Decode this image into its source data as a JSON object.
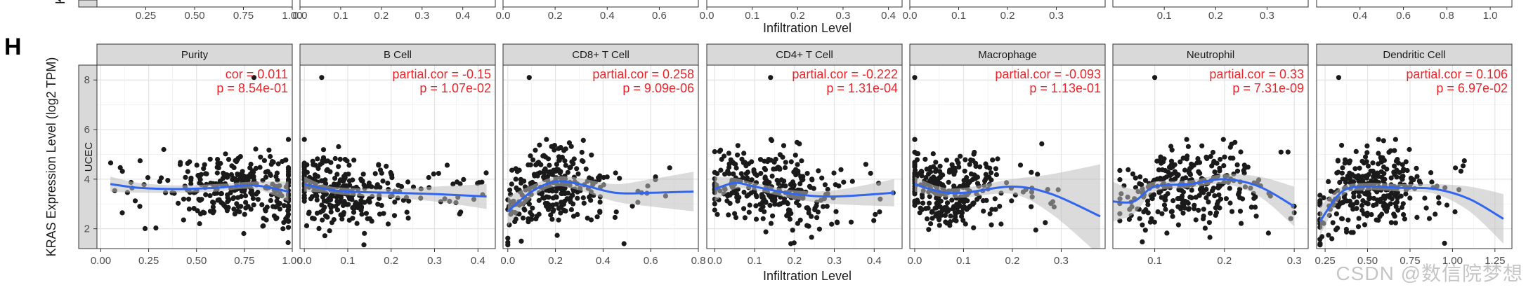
{
  "figure": {
    "panel_label": "H",
    "watermark": "CSDN @数信院梦想",
    "colors": {
      "stat_text": "#e8262b",
      "fit_line": "#3366ee",
      "band": "#bdbdbd",
      "strip": "#d9d9d9",
      "points": "#1a1a1a"
    }
  },
  "top_strip": {
    "partial_y_label": "KF",
    "x_title": "Infiltration Level",
    "panels": [
      {
        "ticks": [
          "0.25",
          "0.50",
          "0.75",
          "1.00"
        ],
        "tick_values": [
          0.25,
          0.5,
          0.75,
          1.0
        ],
        "xlim": [
          0.0,
          1.0
        ]
      },
      {
        "ticks": [
          "0.0",
          "0.1",
          "0.2",
          "0.3",
          "0.4"
        ],
        "tick_values": [
          0.0,
          0.1,
          0.2,
          0.3,
          0.4
        ],
        "xlim": [
          0.0,
          0.48
        ]
      },
      {
        "ticks": [
          "0.0",
          "0.2",
          "0.4",
          "0.6"
        ],
        "tick_values": [
          0.0,
          0.2,
          0.4,
          0.6
        ],
        "xlim": [
          0.0,
          0.75
        ]
      },
      {
        "ticks": [
          "0.0",
          "0.1",
          "0.2",
          "0.3",
          "0.4"
        ],
        "tick_values": [
          0.0,
          0.1,
          0.2,
          0.3,
          0.4
        ],
        "xlim": [
          0.0,
          0.43
        ]
      },
      {
        "ticks": [
          "0.0",
          "0.1",
          "0.2",
          "0.3"
        ],
        "tick_values": [
          0.0,
          0.1,
          0.2,
          0.3
        ],
        "xlim": [
          0.0,
          0.4
        ]
      },
      {
        "ticks": [
          "0.1",
          "0.2",
          "0.3"
        ],
        "tick_values": [
          0.1,
          0.2,
          0.3
        ],
        "xlim": [
          0.0,
          0.38
        ]
      },
      {
        "ticks": [
          "0.4",
          "0.6",
          "0.8",
          "1.0"
        ],
        "tick_values": [
          0.4,
          0.6,
          0.8,
          1.0
        ],
        "xlim": [
          0.2,
          1.1
        ]
      }
    ]
  },
  "chart_data": {
    "type": "scatter",
    "title": "",
    "row_label": "UCEC",
    "ylabel": "KRAS Expression Level (log2 TPM)",
    "xlabel": "Infiltration Level",
    "ylim": [
      1.2,
      8.6
    ],
    "yticks": [
      2,
      4,
      6,
      8
    ],
    "grid": true,
    "panels": [
      {
        "name": "Purity",
        "stat_label": "cor",
        "stat_sep": " = ",
        "stat_value": "0.011",
        "p_text": "p = 8.54e-01",
        "xlim": [
          -0.02,
          1.0
        ],
        "xticks": [
          0.0,
          0.25,
          0.5,
          0.75,
          1.0
        ],
        "xtick_labels": [
          "0.00",
          "0.25",
          "0.50",
          "0.75",
          "1.00"
        ],
        "fit_x": [
          0.05,
          0.2,
          0.4,
          0.6,
          0.8,
          0.98
        ],
        "fit_y": [
          3.8,
          3.65,
          3.6,
          3.65,
          3.75,
          3.5
        ],
        "band_upper": [
          4.1,
          3.85,
          3.75,
          3.8,
          3.9,
          3.9
        ],
        "band_lower": [
          3.5,
          3.45,
          3.45,
          3.5,
          3.6,
          3.1
        ],
        "outliers": [
          [
            0.8,
            8.1
          ]
        ],
        "cluster": {
          "xmin": 0.05,
          "xmax": 0.98,
          "xmean": 0.72,
          "xsd": 0.18,
          "n": 300
        }
      },
      {
        "name": "B Cell",
        "stat_label": "partial.cor",
        "stat_sep": " = ",
        "stat_value": "-0.15",
        "p_text": "p = 1.07e-02",
        "xlim": [
          -0.01,
          0.44
        ],
        "xticks": [
          0.0,
          0.1,
          0.2,
          0.3,
          0.4
        ],
        "xtick_labels": [
          "0.0",
          "0.1",
          "0.2",
          "0.3",
          "0.4"
        ],
        "fit_x": [
          0.0,
          0.05,
          0.1,
          0.2,
          0.3,
          0.42
        ],
        "fit_y": [
          3.8,
          3.6,
          3.5,
          3.45,
          3.4,
          3.3
        ],
        "band_upper": [
          4.1,
          3.75,
          3.65,
          3.6,
          3.7,
          3.8
        ],
        "band_lower": [
          3.5,
          3.45,
          3.35,
          3.25,
          3.1,
          2.8
        ],
        "outliers": [
          [
            0.04,
            8.1
          ]
        ],
        "cluster": {
          "xmin": 0.0,
          "xmax": 0.42,
          "xmean": 0.08,
          "xsd": 0.07,
          "n": 300
        }
      },
      {
        "name": "CD8+ T Cell",
        "stat_label": "partial.cor",
        "stat_sep": " = ",
        "stat_value": "0.258",
        "p_text": "p = 9.09e-06",
        "xlim": [
          -0.02,
          0.8
        ],
        "xticks": [
          0.0,
          0.2,
          0.4,
          0.6,
          0.8
        ],
        "xtick_labels": [
          "0.0",
          "0.2",
          "0.4",
          "0.6",
          "0.8"
        ],
        "fit_x": [
          0.0,
          0.1,
          0.2,
          0.3,
          0.45,
          0.6,
          0.78
        ],
        "fit_y": [
          2.7,
          3.5,
          3.9,
          3.8,
          3.45,
          3.45,
          3.5
        ],
        "band_upper": [
          3.3,
          3.75,
          4.1,
          4.05,
          3.8,
          4.0,
          4.3
        ],
        "band_lower": [
          2.1,
          3.25,
          3.7,
          3.55,
          3.1,
          2.9,
          2.7
        ],
        "outliers": [
          [
            0.09,
            8.1
          ]
        ],
        "cluster": {
          "xmin": 0.0,
          "xmax": 0.7,
          "xmean": 0.18,
          "xsd": 0.1,
          "n": 300
        }
      },
      {
        "name": "CD4+ T Cell",
        "stat_label": "partial.cor",
        "stat_sep": " = ",
        "stat_value": "-0.222",
        "p_text": "p = 1.31e-04",
        "xlim": [
          -0.02,
          0.47
        ],
        "xticks": [
          0.0,
          0.1,
          0.2,
          0.3,
          0.4
        ],
        "xtick_labels": [
          "0.0",
          "0.1",
          "0.2",
          "0.3",
          "0.4"
        ],
        "fit_x": [
          0.0,
          0.05,
          0.1,
          0.2,
          0.3,
          0.45
        ],
        "fit_y": [
          3.6,
          3.85,
          3.7,
          3.4,
          3.3,
          3.45
        ],
        "band_upper": [
          4.1,
          4.05,
          3.85,
          3.55,
          3.55,
          4.0
        ],
        "band_lower": [
          3.1,
          3.6,
          3.55,
          3.2,
          3.0,
          2.9
        ],
        "outliers": [
          [
            0.14,
            8.1
          ]
        ],
        "cluster": {
          "xmin": 0.0,
          "xmax": 0.45,
          "xmean": 0.14,
          "xsd": 0.08,
          "n": 300
        }
      },
      {
        "name": "Macrophage",
        "stat_label": "partial.cor",
        "stat_sep": " = ",
        "stat_value": "-0.093",
        "p_text": "p = 1.13e-01",
        "xlim": [
          -0.01,
          0.39
        ],
        "xticks": [
          0.0,
          0.1,
          0.2,
          0.3
        ],
        "xtick_labels": [
          "0.0",
          "0.1",
          "0.2",
          "0.3"
        ],
        "fit_x": [
          0.0,
          0.05,
          0.1,
          0.2,
          0.28,
          0.38
        ],
        "fit_y": [
          3.8,
          3.5,
          3.45,
          3.7,
          3.4,
          2.5
        ],
        "band_upper": [
          4.1,
          3.7,
          3.65,
          4.0,
          4.2,
          4.6
        ],
        "band_lower": [
          3.5,
          3.3,
          3.25,
          3.4,
          2.6,
          0.9
        ],
        "outliers": [
          [
            0.0,
            8.1
          ]
        ],
        "cluster": {
          "xmin": 0.0,
          "xmax": 0.3,
          "xmean": 0.06,
          "xsd": 0.05,
          "n": 300
        }
      },
      {
        "name": "Neutrophil",
        "stat_label": "partial.cor",
        "stat_sep": " = ",
        "stat_value": "0.33",
        "p_text": "p = 7.31e-09",
        "xlim": [
          0.04,
          0.32
        ],
        "xticks": [
          0.1,
          0.2,
          0.3
        ],
        "xtick_labels": [
          "0.1",
          "0.2",
          "0.3"
        ],
        "fit_x": [
          0.04,
          0.07,
          0.1,
          0.15,
          0.2,
          0.25,
          0.3
        ],
        "fit_y": [
          3.1,
          3.1,
          3.7,
          3.8,
          4.0,
          3.7,
          2.9
        ],
        "band_upper": [
          3.9,
          3.6,
          3.9,
          3.95,
          4.2,
          4.1,
          3.7
        ],
        "band_lower": [
          2.3,
          2.6,
          3.5,
          3.65,
          3.8,
          3.3,
          2.1
        ],
        "outliers": [
          [
            0.1,
            8.1
          ]
        ],
        "cluster": {
          "xmin": 0.05,
          "xmax": 0.3,
          "xmean": 0.15,
          "xsd": 0.05,
          "n": 300
        }
      },
      {
        "name": "Dendritic Cell",
        "stat_label": "partial.cor",
        "stat_sep": " = ",
        "stat_value": "0.106",
        "p_text": "p = 6.97e-02",
        "xlim": [
          0.2,
          1.35
        ],
        "xticks": [
          0.25,
          0.5,
          0.75,
          1.0,
          1.25
        ],
        "xtick_labels": [
          "0.25",
          "0.50",
          "0.75",
          "1.00",
          "1.25"
        ],
        "fit_x": [
          0.22,
          0.35,
          0.5,
          0.7,
          0.9,
          1.1,
          1.3
        ],
        "fit_y": [
          2.3,
          3.5,
          3.7,
          3.65,
          3.6,
          3.2,
          2.4
        ],
        "band_upper": [
          2.9,
          3.7,
          3.85,
          3.8,
          3.8,
          3.7,
          3.4
        ],
        "band_lower": [
          1.7,
          3.3,
          3.55,
          3.5,
          3.4,
          2.7,
          1.4
        ],
        "outliers": [
          [
            0.33,
            8.1
          ]
        ],
        "cluster": {
          "xmin": 0.22,
          "xmax": 1.1,
          "xmean": 0.5,
          "xsd": 0.18,
          "n": 300
        }
      }
    ]
  }
}
